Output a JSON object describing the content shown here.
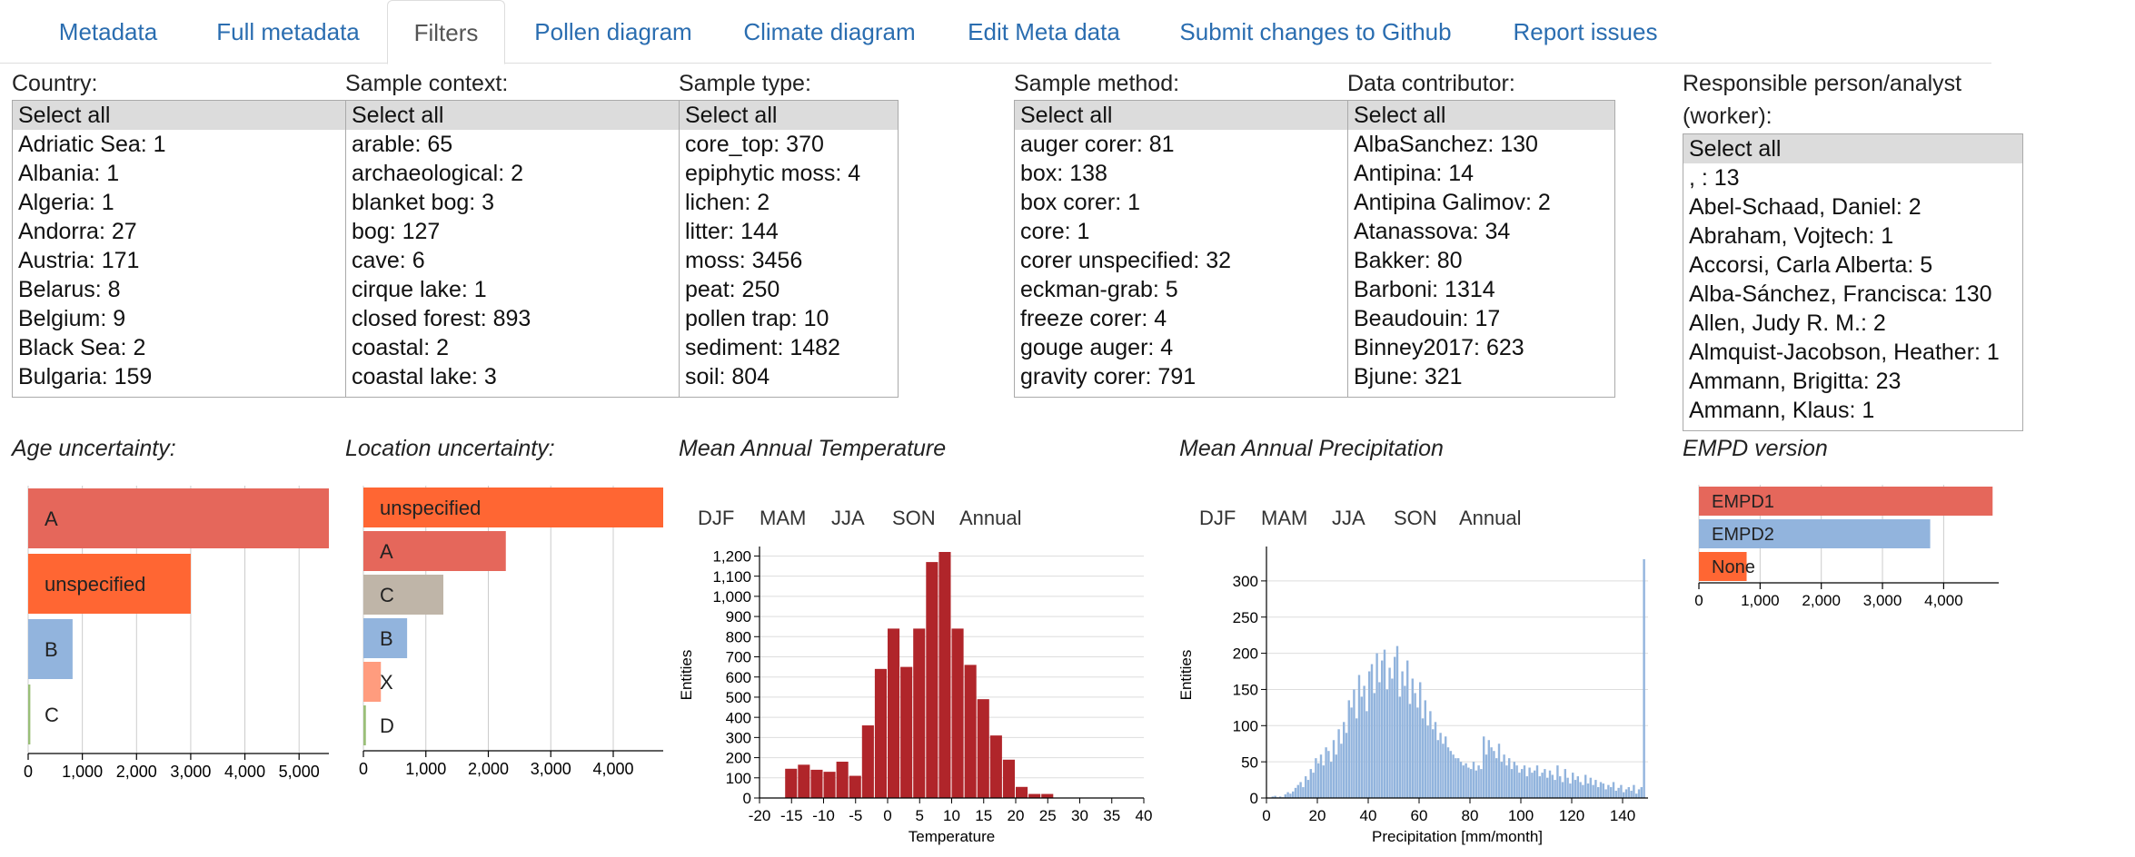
{
  "tabs": [
    {
      "label": "Metadata",
      "active": false
    },
    {
      "label": "Full metadata",
      "active": false
    },
    {
      "label": "Filters",
      "active": true
    },
    {
      "label": "Pollen diagram",
      "active": false
    },
    {
      "label": "Climate diagram",
      "active": false
    },
    {
      "label": "Edit Meta data",
      "active": false
    },
    {
      "label": "Submit changes to Github",
      "active": false
    },
    {
      "label": "Report issues",
      "active": false
    }
  ],
  "filters": {
    "country": {
      "label": "Country:",
      "options": [
        "Select all",
        "Adriatic Sea: 1",
        "Albania: 1",
        "Algeria: 1",
        "Andorra: 27",
        "Austria: 171",
        "Belarus: 8",
        "Belgium: 9",
        "Black Sea: 2",
        "Bulgaria: 159"
      ]
    },
    "sample_context": {
      "label": "Sample context:",
      "options": [
        "Select all",
        "arable: 65",
        "archaeological: 2",
        "blanket bog: 3",
        "bog: 127",
        "cave: 6",
        "cirque lake: 1",
        "closed forest: 893",
        "coastal: 2",
        "coastal lake: 3"
      ]
    },
    "sample_type": {
      "label": "Sample type:",
      "options": [
        "Select all",
        "core_top: 370",
        "epiphytic moss: 4",
        "lichen: 2",
        "litter: 144",
        "moss: 3456",
        "peat: 250",
        "pollen trap: 10",
        "sediment: 1482",
        "soil: 804"
      ]
    },
    "sample_method": {
      "label": "Sample method:",
      "options": [
        "Select all",
        "auger corer: 81",
        "box: 138",
        "box corer: 1",
        "core: 1",
        "corer unspecified: 32",
        "eckman-grab: 5",
        "freeze corer: 4",
        "gouge auger: 4",
        "gravity corer: 791"
      ]
    },
    "data_contributor": {
      "label": "Data contributor:",
      "options": [
        "Select all",
        "AlbaSanchez: 130",
        "Antipina: 14",
        "Antipina Galimov: 2",
        "Atanassova: 34",
        "Bakker: 80",
        "Barboni: 1314",
        "Beaudouin: 17",
        "Binney2017: 623",
        "Bjune: 321"
      ]
    },
    "responsible_person": {
      "label_line1": "Responsible person/analyst",
      "label_line2": "(worker):",
      "options": [
        "Select all",
        ", : 13",
        "Abel-Schaad, Daniel: 2",
        "Abraham, Vojtech: 1",
        "Accorsi, Carla Alberta: 5",
        "Alba-Sánchez, Francisca: 130",
        "Allen, Judy R. M.: 2",
        "Almquist-Jacobson, Heather: 1",
        "Ammann, Brigitta: 23",
        "Ammann, Klaus: 1"
      ]
    }
  },
  "charts": {
    "age": {
      "title": "Age uncertainty:"
    },
    "location": {
      "title": "Location uncertainty:"
    },
    "temperature": {
      "title": "Mean Annual Temperature",
      "seasons": [
        "DJF",
        "MAM",
        "JJA",
        "SON",
        "Annual"
      ]
    },
    "precipitation": {
      "title": "Mean Annual Precipitation",
      "seasons": [
        "DJF",
        "MAM",
        "JJA",
        "SON",
        "Annual"
      ]
    },
    "version": {
      "title": "EMPD version"
    }
  },
  "chart_data": [
    {
      "id": "age",
      "type": "bar",
      "orientation": "horizontal",
      "categories": [
        "A",
        "unspecified",
        "B",
        "C"
      ],
      "values": [
        5550,
        3000,
        820,
        40
      ],
      "colors": [
        "#e5675b",
        "#ff6633",
        "#92b4dd",
        "#9abf78"
      ],
      "xlim": [
        0,
        5550
      ],
      "xticks": [
        0,
        1000,
        2000,
        3000,
        4000,
        5000
      ],
      "xtick_labels": [
        "0",
        "1,000",
        "2,000",
        "3,000",
        "4,000",
        "5,000"
      ],
      "grid": true
    },
    {
      "id": "location",
      "type": "bar",
      "orientation": "horizontal",
      "categories": [
        "unspecified",
        "A",
        "C",
        "B",
        "X",
        "D"
      ],
      "values": [
        4800,
        2280,
        1280,
        700,
        280,
        40
      ],
      "colors": [
        "#ff6633",
        "#e5675b",
        "#bfb5a8",
        "#92b4dd",
        "#ff9c7e",
        "#9abf78"
      ],
      "xlim": [
        0,
        4800
      ],
      "xticks": [
        0,
        1000,
        2000,
        3000,
        4000
      ],
      "xtick_labels": [
        "0",
        "1,000",
        "2,000",
        "3,000",
        "4,000"
      ],
      "grid": true
    },
    {
      "id": "temperature",
      "type": "bar",
      "xlabel": "Temperature",
      "ylabel": "Entities",
      "bin_start": -16,
      "bin_width": 2,
      "values": [
        145,
        165,
        140,
        130,
        180,
        110,
        360,
        640,
        840,
        650,
        840,
        1170,
        1220,
        840,
        660,
        490,
        310,
        190,
        55,
        20,
        20
      ],
      "xlim": [
        -20,
        40
      ],
      "ylim": [
        0,
        1220
      ],
      "xticks": [
        -20,
        -15,
        -10,
        -5,
        0,
        5,
        10,
        15,
        20,
        25,
        30,
        35,
        40
      ],
      "yticks": [
        0,
        100,
        200,
        300,
        400,
        500,
        600,
        700,
        800,
        900,
        1000,
        1100,
        1200
      ],
      "ytick_labels": [
        "0",
        "100",
        "200",
        "300",
        "400",
        "500",
        "600",
        "700",
        "800",
        "900",
        "1,000",
        "1,100",
        "1,200"
      ],
      "color": "#b0252a",
      "grid": true
    },
    {
      "id": "precipitation",
      "type": "bar",
      "xlabel": "Precipitation [mm/month]",
      "ylabel": "Entities",
      "bin_start": 0,
      "bin_width": 1,
      "values": [
        0,
        0,
        2,
        3,
        1,
        2,
        1,
        5,
        8,
        6,
        9,
        14,
        18,
        22,
        15,
        30,
        25,
        40,
        35,
        55,
        48,
        60,
        45,
        70,
        65,
        50,
        80,
        60,
        95,
        75,
        105,
        90,
        135,
        125,
        150,
        110,
        170,
        140,
        155,
        120,
        175,
        185,
        145,
        200,
        160,
        190,
        205,
        150,
        180,
        165,
        195,
        210,
        140,
        175,
        155,
        190,
        130,
        165,
        145,
        125,
        160,
        110,
        135,
        100,
        120,
        95,
        105,
        80,
        90,
        75,
        85,
        70,
        65,
        60,
        55,
        55,
        50,
        45,
        48,
        42,
        40,
        50,
        38,
        45,
        40,
        85,
        60,
        80,
        70,
        65,
        55,
        75,
        50,
        60,
        45,
        55,
        40,
        50,
        45,
        35,
        40,
        45,
        30,
        42,
        35,
        38,
        45,
        30,
        35,
        40,
        28,
        38,
        32,
        25,
        45,
        30,
        22,
        40,
        28,
        20,
        35,
        25,
        30,
        22,
        18,
        32,
        20,
        28,
        18,
        25,
        15,
        22,
        20,
        12,
        18,
        15,
        22,
        10,
        14,
        18,
        8,
        12,
        15,
        10,
        18,
        6,
        12,
        15,
        330
      ],
      "xlim": [
        0,
        150
      ],
      "ylim": [
        0,
        340
      ],
      "xticks": [
        0,
        20,
        40,
        60,
        80,
        100,
        120,
        140
      ],
      "yticks": [
        0,
        50,
        100,
        150,
        200,
        250,
        300
      ],
      "color": "#92b4dd",
      "grid": true
    },
    {
      "id": "version",
      "type": "bar",
      "orientation": "horizontal",
      "categories": [
        "EMPD1",
        "EMPD2",
        "None"
      ],
      "values": [
        4800,
        3780,
        780
      ],
      "colors": [
        "#e5675b",
        "#92b4dd",
        "#ff6633"
      ],
      "xlim": [
        0,
        4900
      ],
      "xticks": [
        0,
        1000,
        2000,
        3000,
        4000
      ],
      "xtick_labels": [
        "0",
        "1,000",
        "2,000",
        "3,000",
        "4,000"
      ],
      "grid": true
    }
  ]
}
